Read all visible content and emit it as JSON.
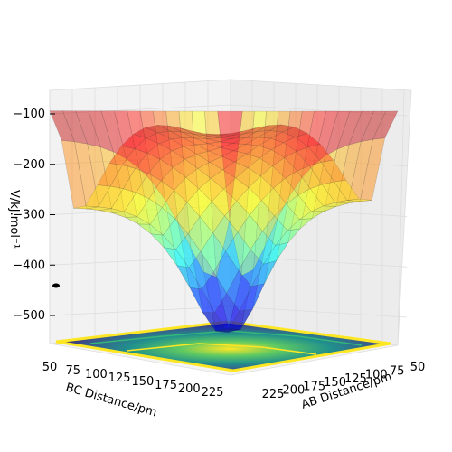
{
  "chart_data": {
    "type": "surface",
    "title": "",
    "xlabel": "AB Distance/pm",
    "ylabel": "BC Distance/pm",
    "zlabel": "V/kJ.mol⁻¹",
    "x_ticks": [
      "50",
      "75",
      "100",
      "125",
      "150",
      "175",
      "200",
      "225"
    ],
    "y_ticks": [
      "50",
      "75",
      "100",
      "125",
      "150",
      "175",
      "200",
      "225"
    ],
    "z_ticks": [
      "−100",
      "−200",
      "−300",
      "−400",
      "−500"
    ],
    "xlim": [
      50,
      240
    ],
    "ylim": [
      50,
      240
    ],
    "zlim": [
      -560,
      -80
    ],
    "z_tick_values": [
      -100,
      -200,
      -300,
      -400,
      -500
    ],
    "colormap_surface": "jet (semi-transparent)",
    "colormap_floor_contour": "viridis",
    "grid": true,
    "features": {
      "well_depth_approx": -458,
      "saddle_region_approx": -420,
      "corner_heights_approx": {
        "far_left": -110,
        "far_right": -110,
        "near_right": -430,
        "near_left": -520
      }
    }
  }
}
